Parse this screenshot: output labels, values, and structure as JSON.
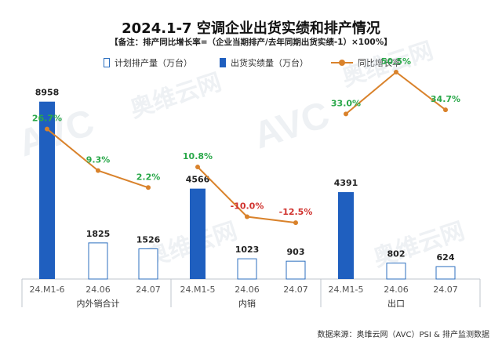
{
  "chart_data": {
    "type": "bar",
    "title": "2024.1-7 空调企业出货实绩和排产情况",
    "subtitle": "【备注：排产同比增长率=（企业当期排产/去年同期出货实绩-1）×100%】",
    "groups": [
      {
        "name": "内外销合计",
        "categories": [
          "24.M1-6",
          "24.06",
          "24.07"
        ]
      },
      {
        "name": "内销",
        "categories": [
          "24.M1-5",
          "24.06",
          "24.07"
        ]
      },
      {
        "name": "出口",
        "categories": [
          "24.M1-5",
          "24.06",
          "24.07"
        ]
      }
    ],
    "series": [
      {
        "name": "计划排产量（万台）",
        "kind": "bar-hollow",
        "values": [
          null,
          1825,
          1526,
          null,
          1023,
          903,
          null,
          802,
          624
        ]
      },
      {
        "name": "出货实绩量（万台）",
        "kind": "bar-solid",
        "values": [
          8958,
          null,
          null,
          4566,
          null,
          null,
          4391,
          null,
          null
        ]
      },
      {
        "name": "同比增长率",
        "kind": "line",
        "groups": [
          {
            "values": [
              26.7,
              9.3,
              2.2
            ],
            "labels": [
              "26.7%",
              "9.3%",
              "2.2%"
            ]
          },
          {
            "values": [
              10.8,
              -10.0,
              -12.5
            ],
            "labels": [
              "10.8%",
              "-10.0%",
              "-12.5%"
            ]
          },
          {
            "values": [
              33.0,
              50.5,
              34.7
            ],
            "labels": [
              "33.0%",
              "50.5%",
              "34.7%"
            ]
          }
        ]
      }
    ],
    "bar_labels": [
      "8958",
      "1825",
      "1526",
      "4566",
      "1023",
      "903",
      "4391",
      "802",
      "624"
    ],
    "ylim_bars": [
      0,
      9500
    ],
    "colors": {
      "solid": "#1f5fbf",
      "hollow_stroke": "#2c6fbf",
      "line": "#d9822b",
      "positive_label": "#2aa84a",
      "negative_label": "#d0312d"
    },
    "legend_position": "top"
  },
  "legend": {
    "planned": "计划排产量（万台）",
    "actual": "出货实绩量（万台）",
    "growth": "同比增长率"
  },
  "source": "数据来源：奥维云网（AVC）PSI & 排产监测数据",
  "watermark": "AVC 奥维云网"
}
